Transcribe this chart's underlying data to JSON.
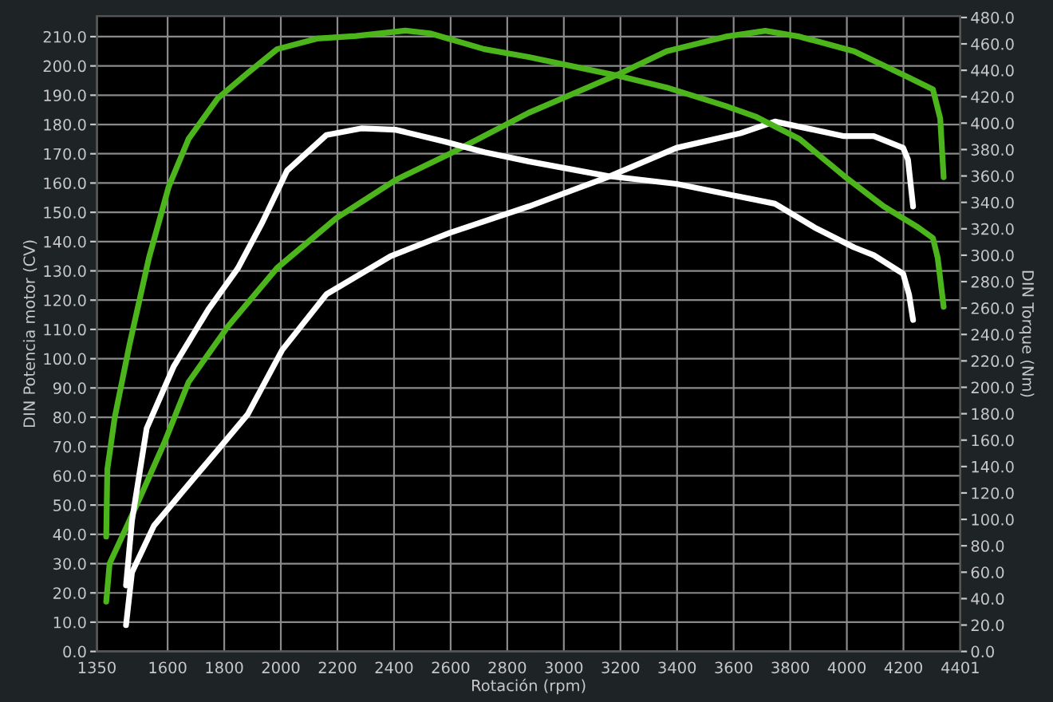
{
  "chart_data": {
    "type": "line",
    "xlabel": "Rotación (rpm)",
    "ylabel": "DIN Potencia motor (CV)",
    "y2label": "DIN Torque (Nm)",
    "xlim": [
      1350,
      4401
    ],
    "xticks": [
      1350,
      1600,
      1800,
      2000,
      2200,
      2400,
      2600,
      2800,
      3000,
      3200,
      3400,
      3600,
      3800,
      4000,
      4200,
      4401
    ],
    "ylim": [
      0,
      217
    ],
    "yticks": [
      {
        "value": 0,
        "label": "0.0"
      },
      {
        "value": 10,
        "label": "10.0"
      },
      {
        "value": 20,
        "label": "20.0"
      },
      {
        "value": 30,
        "label": "30.0"
      },
      {
        "value": 40,
        "label": "40.0"
      },
      {
        "value": 50,
        "label": "50.0"
      },
      {
        "value": 60,
        "label": "60.0"
      },
      {
        "value": 70,
        "label": "70.0"
      },
      {
        "value": 80,
        "label": "80.0"
      },
      {
        "value": 90,
        "label": "90.0"
      },
      {
        "value": 100,
        "label": "100.0"
      },
      {
        "value": 110,
        "label": "110.0"
      },
      {
        "value": 120,
        "label": "120.0"
      },
      {
        "value": 130,
        "label": "130.0"
      },
      {
        "value": 140,
        "label": "140.0"
      },
      {
        "value": 150,
        "label": "150.0"
      },
      {
        "value": 160,
        "label": "160.0"
      },
      {
        "value": 170,
        "label": "170.0"
      },
      {
        "value": 180,
        "label": "180.0"
      },
      {
        "value": 190,
        "label": "190.0"
      },
      {
        "value": 200,
        "label": "200.0"
      },
      {
        "value": 210,
        "label": "210.0"
      }
    ],
    "y2lim": [
      0,
      481
    ],
    "y2ticks": [
      {
        "value": 0,
        "label": "0.0"
      },
      {
        "value": 20,
        "label": "20.0"
      },
      {
        "value": 40,
        "label": "40.0"
      },
      {
        "value": 60,
        "label": "60.0"
      },
      {
        "value": 80,
        "label": "80.0"
      },
      {
        "value": 100,
        "label": "100.0"
      },
      {
        "value": 120,
        "label": "120.0"
      },
      {
        "value": 140,
        "label": "140.0"
      },
      {
        "value": 160,
        "label": "160.0"
      },
      {
        "value": 180,
        "label": "180.0"
      },
      {
        "value": 200,
        "label": "200.0"
      },
      {
        "value": 220,
        "label": "220.0"
      },
      {
        "value": 240,
        "label": "240.0"
      },
      {
        "value": 260,
        "label": "260.0"
      },
      {
        "value": 280,
        "label": "280.0"
      },
      {
        "value": 300,
        "label": "300.0"
      },
      {
        "value": 320,
        "label": "320.0"
      },
      {
        "value": 340,
        "label": "340.0"
      },
      {
        "value": 360,
        "label": "360.0"
      },
      {
        "value": 380,
        "label": "380.0"
      },
      {
        "value": 400,
        "label": "400.0"
      },
      {
        "value": 420,
        "label": "420.0"
      },
      {
        "value": 440,
        "label": "440.0"
      },
      {
        "value": 460,
        "label": "460.0"
      },
      {
        "value": 480,
        "label": "480.0"
      }
    ],
    "grid": true,
    "line_style": "solid",
    "marker": "none",
    "series": [
      {
        "color": "#4cb51c",
        "axis": "y2",
        "x": [
          1383,
          1387,
          1413,
          1465,
          1534,
          1604,
          1674,
          1778,
          1883,
          1987,
          2127,
          2266,
          2440,
          2527,
          2719,
          2876,
          3189,
          3363,
          3572,
          3677,
          3833,
          3990,
          4130,
          4252,
          4304,
          4321,
          4342
        ],
        "values": [
          87,
          138,
          177,
          232,
          298,
          352,
          388,
          419,
          438,
          456,
          464,
          466,
          470,
          468,
          456,
          450,
          436,
          427,
          413,
          405,
          388,
          360,
          337,
          321,
          313,
          298,
          261
        ]
      },
      {
        "color": "#4cb51c",
        "axis": "y",
        "x": [
          1383,
          1395,
          1500,
          1587,
          1674,
          1813,
          1987,
          2196,
          2405,
          2597,
          2876,
          3189,
          3363,
          3572,
          3712,
          3833,
          4025,
          4199,
          4304,
          4330,
          4342
        ],
        "values": [
          17,
          30,
          52,
          71,
          92,
          111,
          131,
          148,
          161,
          170,
          184,
          197,
          205,
          210,
          212,
          210,
          205,
          197,
          192,
          182,
          162
        ]
      },
      {
        "color": "#ffffff",
        "axis": "y",
        "x": [
          1453,
          1474,
          1552,
          1674,
          1796,
          1883,
          2005,
          2161,
          2388,
          2597,
          2876,
          3154,
          3398,
          3624,
          3746,
          3990,
          4095,
          4199,
          4216,
          4234
        ],
        "values": [
          9,
          27,
          43,
          57,
          71,
          81,
          103,
          122,
          135,
          143,
          152,
          162,
          172,
          177,
          181,
          176,
          176,
          172,
          168,
          152
        ]
      },
      {
        "color": "#ffffff",
        "axis": "y2",
        "x": [
          1453,
          1474,
          1526,
          1622,
          1744,
          1848,
          1935,
          2022,
          2161,
          2284,
          2405,
          2579,
          2719,
          2876,
          3154,
          3398,
          3607,
          3746,
          3886,
          4025,
          4095,
          4199,
          4220,
          4234
        ],
        "values": [
          50,
          99,
          169,
          216,
          259,
          290,
          325,
          364,
          391,
          396,
          395,
          386,
          378,
          371,
          360,
          354,
          345,
          339,
          321,
          306,
          300,
          286,
          270,
          251
        ]
      }
    ]
  }
}
